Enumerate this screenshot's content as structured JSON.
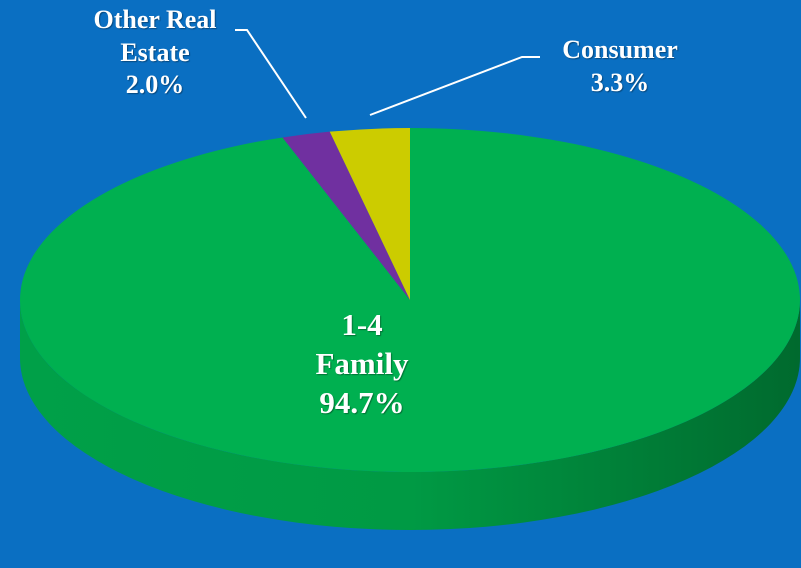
{
  "chart_data": {
    "type": "pie",
    "categories": [
      "1-4 Family",
      "Other Real Estate",
      "Consumer"
    ],
    "values": [
      94.7,
      2.0,
      3.3
    ],
    "value_labels": [
      "94.7%",
      "2.0%",
      "3.3%"
    ],
    "colors": [
      "#00b050",
      "#7030a0",
      "#cccc00"
    ]
  }
}
